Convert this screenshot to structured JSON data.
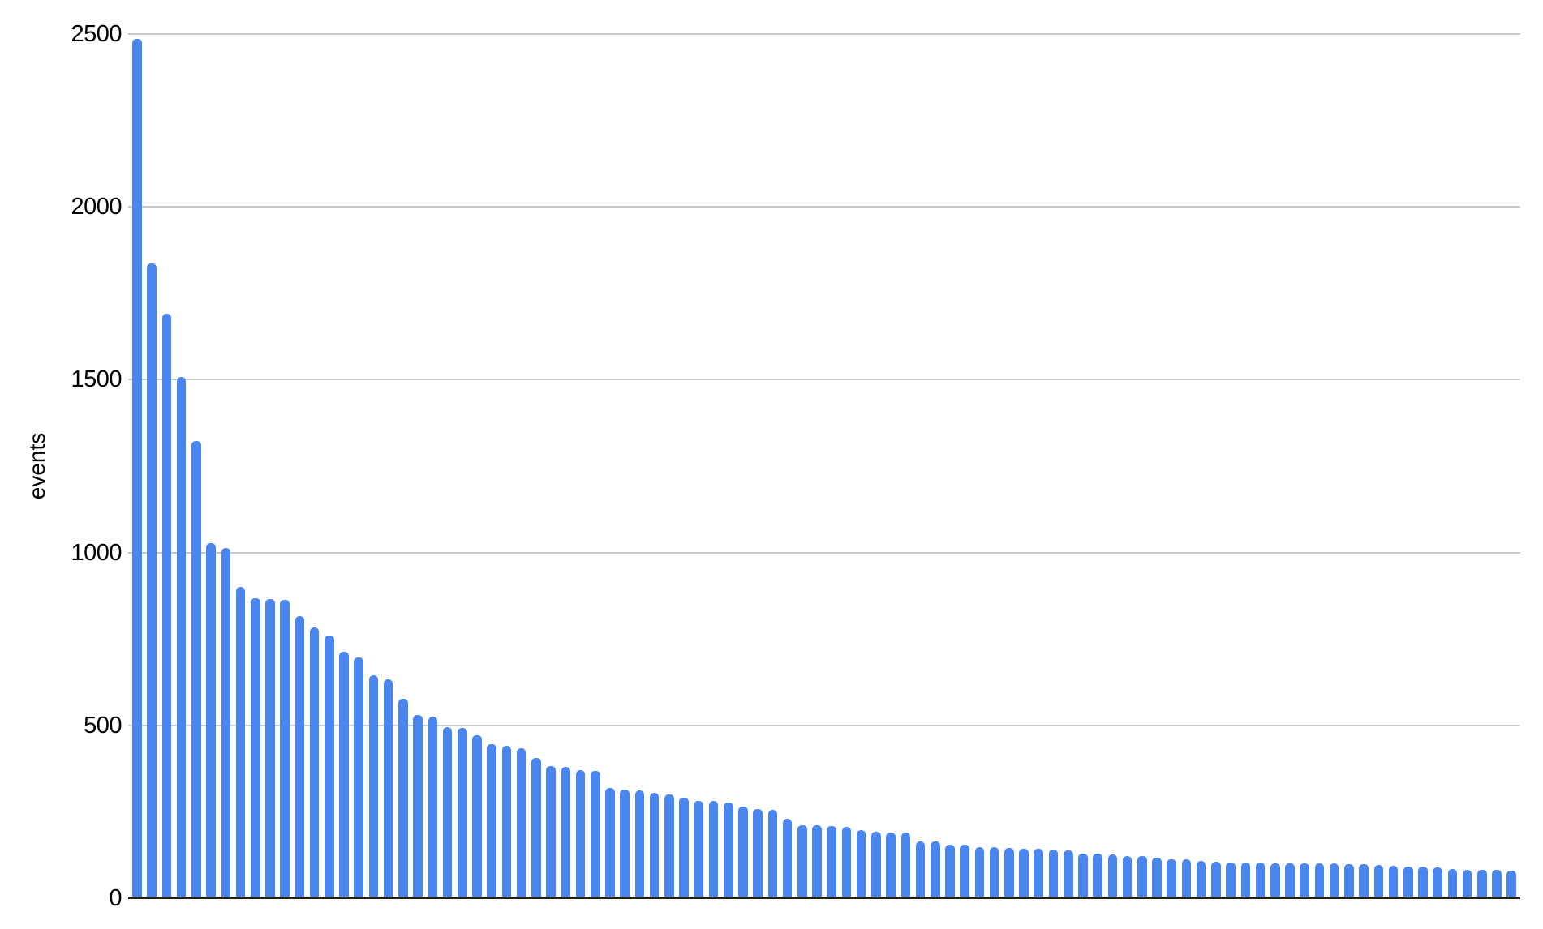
{
  "chart_data": {
    "type": "bar",
    "title": "",
    "xlabel": "",
    "ylabel": "events",
    "ylim": [
      0,
      2500
    ],
    "yticks": [
      0,
      500,
      1000,
      1500,
      2000,
      2500
    ],
    "grid": true,
    "legend_position": "none",
    "x_axis_labels_visible": false,
    "n_bars": 94,
    "values": [
      2485,
      1836,
      1691,
      1508,
      1323,
      1027,
      1012,
      901,
      867,
      865,
      863,
      817,
      783,
      759,
      713,
      697,
      646,
      633,
      576,
      529,
      525,
      496,
      492,
      471,
      445,
      441,
      435,
      406,
      383,
      381,
      371,
      369,
      320,
      315,
      311,
      305,
      301,
      291,
      282,
      281,
      276,
      266,
      258,
      256,
      230,
      211,
      210,
      209,
      207,
      198,
      192,
      190,
      189,
      165,
      164,
      155,
      154,
      148,
      147,
      145,
      144,
      143,
      140,
      139,
      130,
      129,
      127,
      123,
      122,
      117,
      113,
      112,
      107,
      106,
      104,
      103,
      103,
      102,
      102,
      101,
      101,
      100,
      99,
      98,
      96,
      95,
      92,
      91,
      90,
      84,
      83,
      82,
      81,
      80
    ],
    "bar_color": "#4a86ee",
    "gridline_color": "#c9c9c9",
    "baseline_color": "#212121",
    "background_color": "#ffffff",
    "tick_label_color": "#000000"
  }
}
